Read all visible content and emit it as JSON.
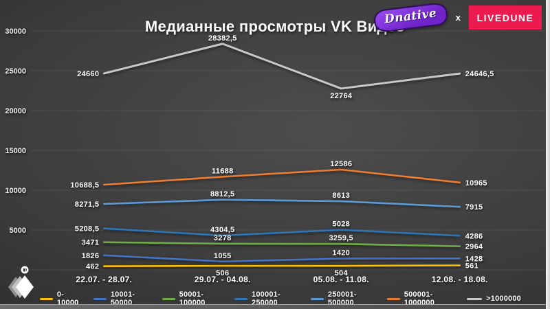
{
  "header": {
    "title": "Медианные просмотры VK Видео"
  },
  "brand": {
    "dnative_label": "Dnative",
    "collab_separator": "x",
    "livedune_label": "LIVEDUNE",
    "livedune_bg": "#ED1A4F"
  },
  "chart_data": {
    "type": "line",
    "title": "Медианные просмотры VK Видео",
    "categories": [
      "22.07. - 28.07.",
      "29.07. - 04.08.",
      "05.08. - 11.08.",
      "12.08. - 18.08."
    ],
    "xlabel": "",
    "ylabel": "",
    "ylim": [
      0,
      30000
    ],
    "yticks": [
      0,
      5000,
      10000,
      15000,
      20000,
      25000,
      30000
    ],
    "grid": true,
    "legend_position": "bottom",
    "series": [
      {
        "name": "0-10000",
        "color": "#FFC000",
        "values": [
          462,
          506,
          504,
          561
        ],
        "labels": [
          "462",
          "506",
          "504",
          "561"
        ],
        "label_pos": [
          "left",
          "below",
          "below",
          "right"
        ]
      },
      {
        "name": "10001-50000",
        "color": "#4472C4",
        "values": [
          1826,
          1055,
          1420,
          1428
        ],
        "labels": [
          "1826",
          "1055",
          "1420",
          "1428"
        ],
        "label_pos": [
          "left",
          "above",
          "above",
          "right"
        ]
      },
      {
        "name": "50001-100000",
        "color": "#70AD47",
        "values": [
          3471,
          3278,
          3259.5,
          2964
        ],
        "labels": [
          "3471",
          "3278",
          "3259,5",
          "2964"
        ],
        "label_pos": [
          "left",
          "above",
          "above",
          "right"
        ]
      },
      {
        "name": "100001-250000",
        "color": "#2E75B6",
        "values": [
          5208.5,
          4304.5,
          5028,
          4286
        ],
        "labels": [
          "5208,5",
          "4304,5",
          "5028",
          "4286"
        ],
        "label_pos": [
          "left",
          "above",
          "above",
          "right"
        ]
      },
      {
        "name": "250001-500000",
        "color": "#5B9BD5",
        "values": [
          8271.5,
          8812.5,
          8613,
          7915
        ],
        "labels": [
          "8271,5",
          "8812,5",
          "8613",
          "7915"
        ],
        "label_pos": [
          "left",
          "above",
          "above",
          "right"
        ]
      },
      {
        "name": "500001-1000000",
        "color": "#ED7D31",
        "values": [
          10688.5,
          11688,
          12586,
          10965
        ],
        "labels": [
          "10688,5",
          "11688",
          "12586",
          "10965"
        ],
        "label_pos": [
          "left",
          "above",
          "above",
          "right"
        ]
      },
      {
        "name": ">1000000",
        "color": "#C8C8C8",
        "values": [
          24660,
          28382.5,
          22764,
          24646.5
        ],
        "labels": [
          "24660",
          "28382,5",
          "22764",
          "24646,5"
        ],
        "label_pos": [
          "left",
          "above",
          "below",
          "right"
        ]
      }
    ]
  }
}
